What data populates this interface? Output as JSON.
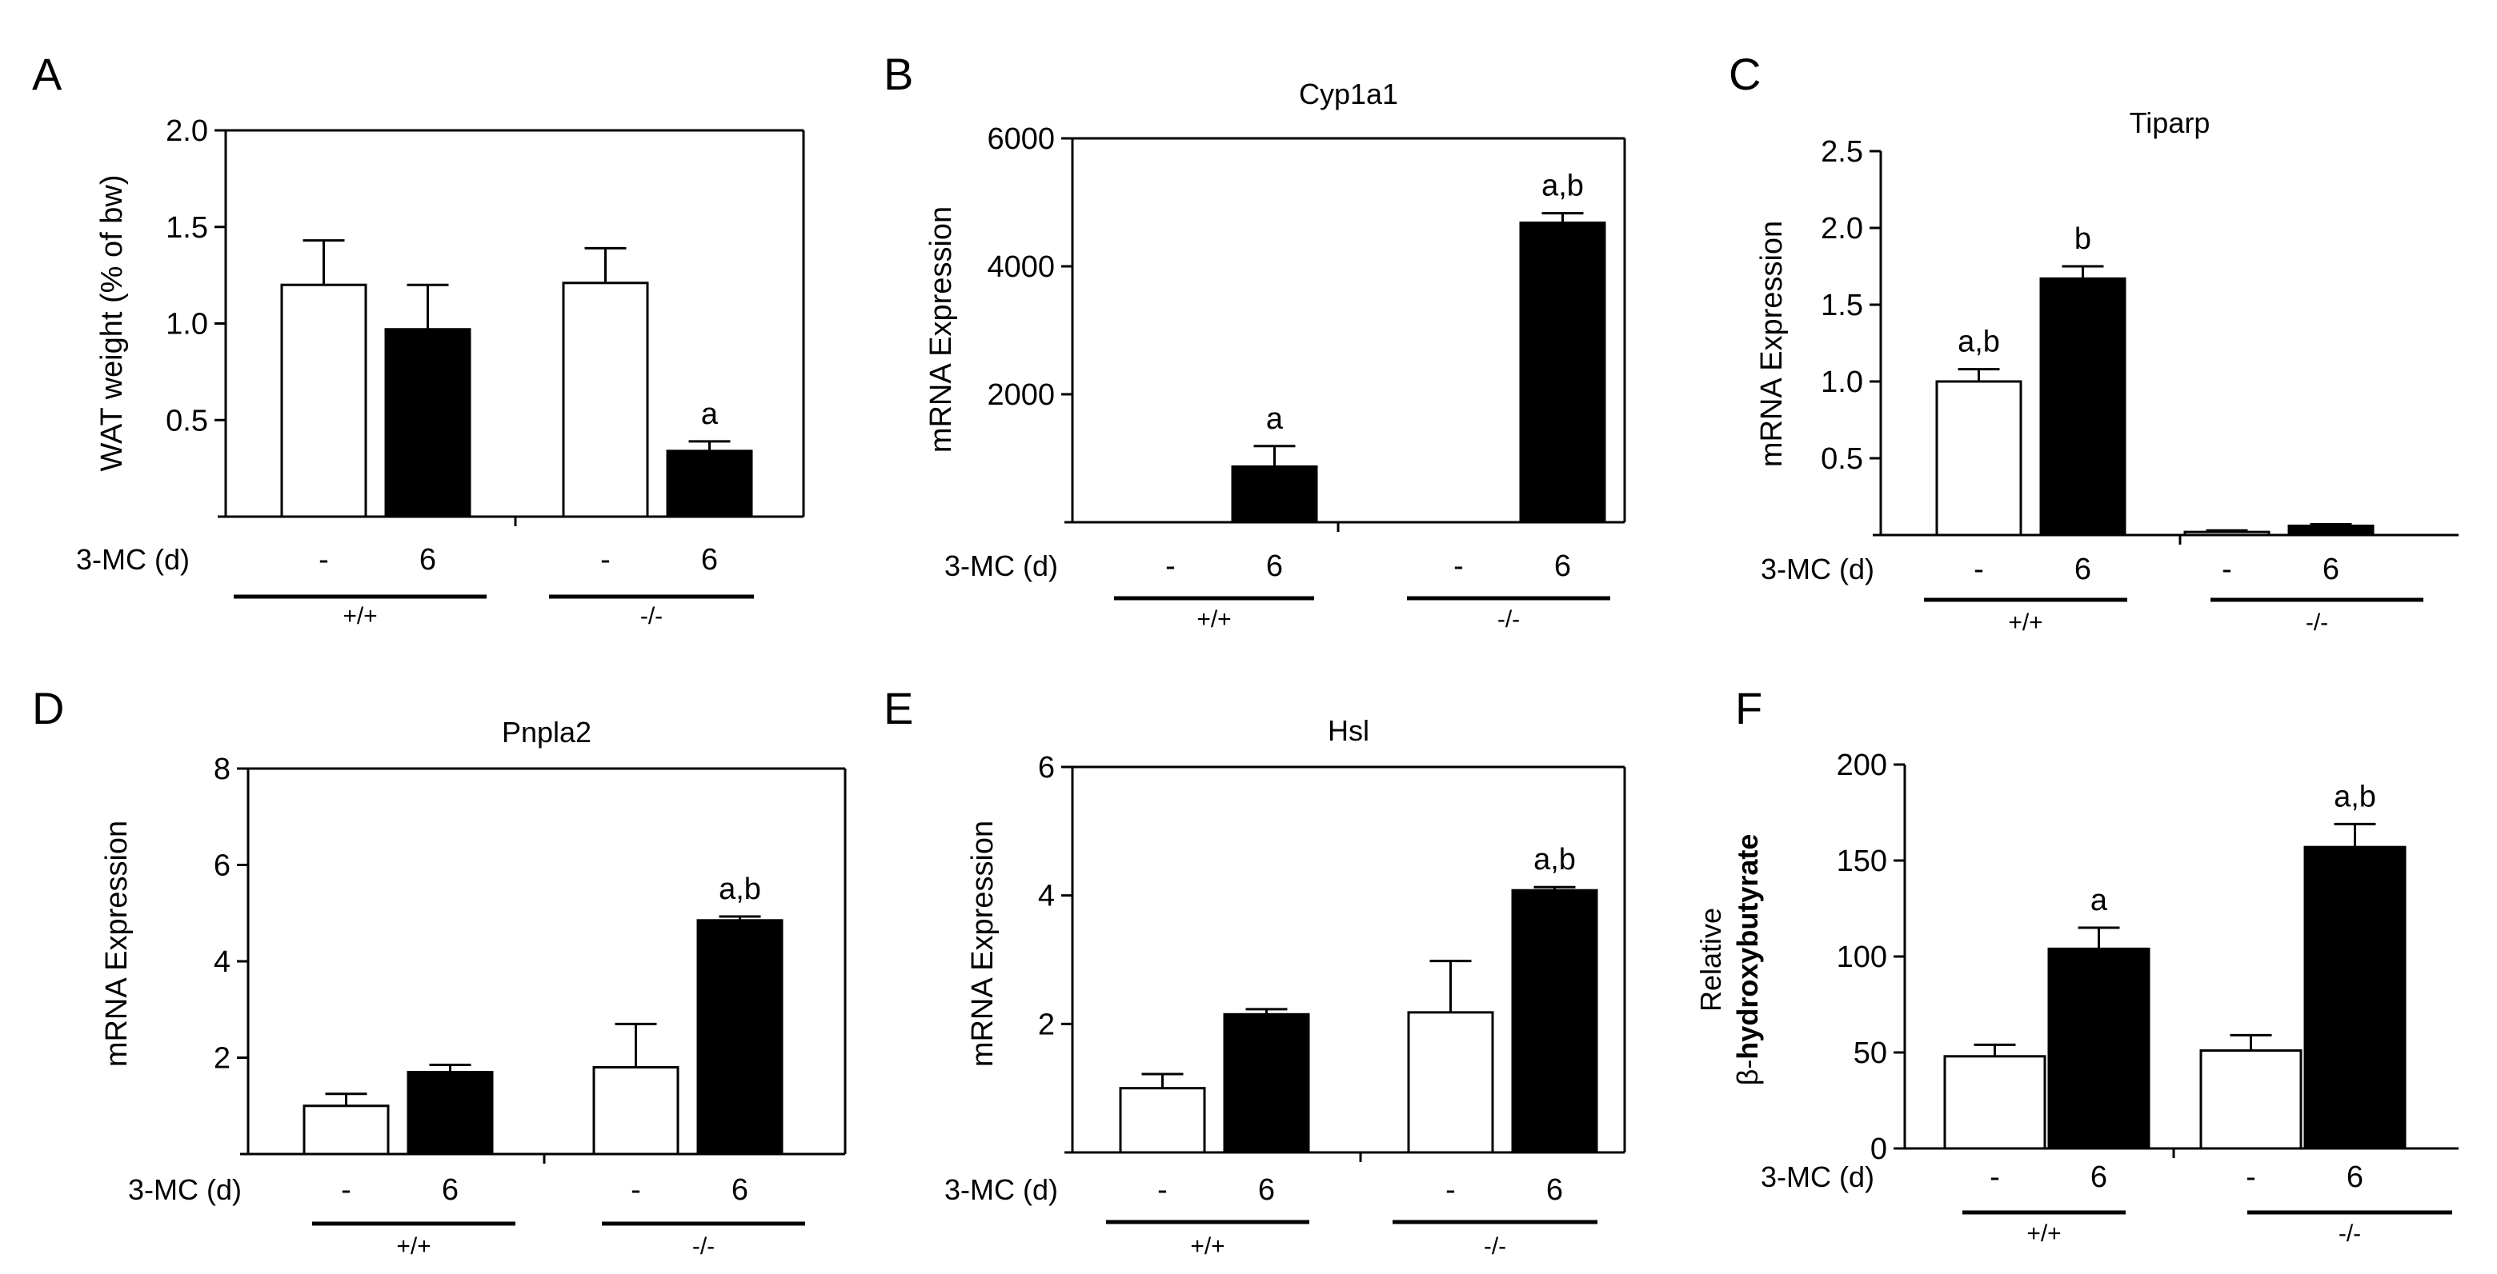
{
  "colors": {
    "vehicle_fill": "#ffffff",
    "treated_fill": "#000000",
    "stroke": "#000000"
  },
  "chart_data": [
    {
      "panel": "A",
      "type": "bar",
      "title": "",
      "ylabel": "WAT weight (% of bw)",
      "xlabel": "",
      "ylim": [
        0,
        2.0
      ],
      "yticks": [
        0.5,
        1.0,
        1.5,
        2.0
      ],
      "ytick_labels": [
        "0.5",
        "1.0",
        "1.5",
        "2.0"
      ],
      "treatment_label": "3-MC (d)",
      "groups": [
        "+/+",
        "-/-"
      ],
      "categories": [
        "-",
        "6",
        "-",
        "6"
      ],
      "bars": [
        {
          "group": "+/+",
          "treatment": "-",
          "value": 1.2,
          "error": 0.23,
          "fill": "white",
          "annotation": ""
        },
        {
          "group": "+/+",
          "treatment": "6",
          "value": 0.97,
          "error": 0.23,
          "fill": "black",
          "annotation": ""
        },
        {
          "group": "-/-",
          "treatment": "-",
          "value": 1.21,
          "error": 0.18,
          "fill": "white",
          "annotation": ""
        },
        {
          "group": "-/-",
          "treatment": "6",
          "value": 0.34,
          "error": 0.05,
          "fill": "black",
          "annotation": "a"
        }
      ]
    },
    {
      "panel": "B",
      "type": "bar",
      "title": "Cyp1a1",
      "ylabel": "mRNA  Expression",
      "xlabel": "",
      "ylim": [
        0,
        6000
      ],
      "yticks": [
        2000,
        4000,
        6000
      ],
      "ytick_labels": [
        "2000",
        "4000",
        "6000"
      ],
      "treatment_label": "3-MC (d)",
      "groups": [
        "+/+",
        "-/-"
      ],
      "categories": [
        "-",
        "6",
        "-",
        "6"
      ],
      "bars": [
        {
          "group": "+/+",
          "treatment": "-",
          "value": 0,
          "error": 0,
          "fill": "white",
          "annotation": ""
        },
        {
          "group": "+/+",
          "treatment": "6",
          "value": 870,
          "error": 320,
          "fill": "black",
          "annotation": "a"
        },
        {
          "group": "-/-",
          "treatment": "-",
          "value": 0,
          "error": 0,
          "fill": "white",
          "annotation": ""
        },
        {
          "group": "-/-",
          "treatment": "6",
          "value": 4680,
          "error": 150,
          "fill": "black",
          "annotation": "a,b"
        }
      ]
    },
    {
      "panel": "C",
      "type": "bar",
      "title": "Tiparp",
      "ylabel": "mRNA  Expression",
      "xlabel": "",
      "ylim": [
        0,
        2.5
      ],
      "yticks": [
        0.5,
        1.0,
        1.5,
        2.0,
        2.5
      ],
      "ytick_labels": [
        "0.5",
        "1.0",
        "1.5",
        "2.0",
        "2.5"
      ],
      "treatment_label": "3-MC (d)",
      "groups": [
        "+/+",
        "-/-"
      ],
      "categories": [
        "-",
        "6",
        "-",
        "6"
      ],
      "bars": [
        {
          "group": "+/+",
          "treatment": "-",
          "value": 1.0,
          "error": 0.08,
          "fill": "white",
          "annotation": "a,b"
        },
        {
          "group": "+/+",
          "treatment": "6",
          "value": 1.67,
          "error": 0.08,
          "fill": "black",
          "annotation": "b"
        },
        {
          "group": "-/-",
          "treatment": "-",
          "value": 0.02,
          "error": 0.01,
          "fill": "white",
          "annotation": ""
        },
        {
          "group": "-/-",
          "treatment": "6",
          "value": 0.06,
          "error": 0.01,
          "fill": "black",
          "annotation": ""
        }
      ]
    },
    {
      "panel": "D",
      "type": "bar",
      "title": "Pnpla2",
      "ylabel": "mRNA  Expression",
      "xlabel": "",
      "ylim": [
        0,
        8
      ],
      "yticks": [
        2,
        4,
        6,
        8
      ],
      "ytick_labels": [
        "2",
        "4",
        "6",
        "8"
      ],
      "treatment_label": "3-MC (d)",
      "groups": [
        "+/+",
        "-/-"
      ],
      "categories": [
        "-",
        "6",
        "-",
        "6"
      ],
      "bars": [
        {
          "group": "+/+",
          "treatment": "-",
          "value": 1.0,
          "error": 0.25,
          "fill": "white",
          "annotation": ""
        },
        {
          "group": "+/+",
          "treatment": "6",
          "value": 1.7,
          "error": 0.15,
          "fill": "black",
          "annotation": ""
        },
        {
          "group": "-/-",
          "treatment": "-",
          "value": 1.8,
          "error": 0.9,
          "fill": "white",
          "annotation": ""
        },
        {
          "group": "-/-",
          "treatment": "6",
          "value": 4.85,
          "error": 0.08,
          "fill": "black",
          "annotation": "a,b"
        }
      ]
    },
    {
      "panel": "E",
      "type": "bar",
      "title": "Hsl",
      "ylabel": "mRNA  Expression",
      "xlabel": "",
      "ylim": [
        0,
        6
      ],
      "yticks": [
        2,
        4,
        6
      ],
      "ytick_labels": [
        "2",
        "4",
        "6"
      ],
      "treatment_label": "3-MC (d)",
      "groups": [
        "+/+",
        "-/-"
      ],
      "categories": [
        "-",
        "6",
        "-",
        "6"
      ],
      "bars": [
        {
          "group": "+/+",
          "treatment": "-",
          "value": 1.0,
          "error": 0.22,
          "fill": "white",
          "annotation": ""
        },
        {
          "group": "+/+",
          "treatment": "6",
          "value": 2.15,
          "error": 0.08,
          "fill": "black",
          "annotation": ""
        },
        {
          "group": "-/-",
          "treatment": "-",
          "value": 2.18,
          "error": 0.8,
          "fill": "white",
          "annotation": ""
        },
        {
          "group": "-/-",
          "treatment": "6",
          "value": 4.08,
          "error": 0.05,
          "fill": "black",
          "annotation": "a,b"
        }
      ]
    },
    {
      "panel": "F",
      "type": "bar",
      "title": "",
      "ylabel_line1": "Relative",
      "ylabel_beta": "β-",
      "ylabel_line2": "hydroxybutyrate",
      "xlabel": "",
      "ylim": [
        0,
        200
      ],
      "yticks": [
        0,
        50,
        100,
        150,
        200
      ],
      "ytick_labels": [
        "0",
        "50",
        "100",
        "150",
        "200"
      ],
      "treatment_label": "3-MC (d)",
      "groups": [
        "+/+",
        "-/-"
      ],
      "categories": [
        "-",
        "6",
        "-",
        "6"
      ],
      "bars": [
        {
          "group": "+/+",
          "treatment": "-",
          "value": 48,
          "error": 6,
          "fill": "white",
          "annotation": ""
        },
        {
          "group": "+/+",
          "treatment": "6",
          "value": 104,
          "error": 11,
          "fill": "black",
          "annotation": "a"
        },
        {
          "group": "-/-",
          "treatment": "-",
          "value": 51,
          "error": 8,
          "fill": "white",
          "annotation": ""
        },
        {
          "group": "-/-",
          "treatment": "6",
          "value": 157,
          "error": 12,
          "fill": "black",
          "annotation": "a,b"
        }
      ]
    }
  ]
}
